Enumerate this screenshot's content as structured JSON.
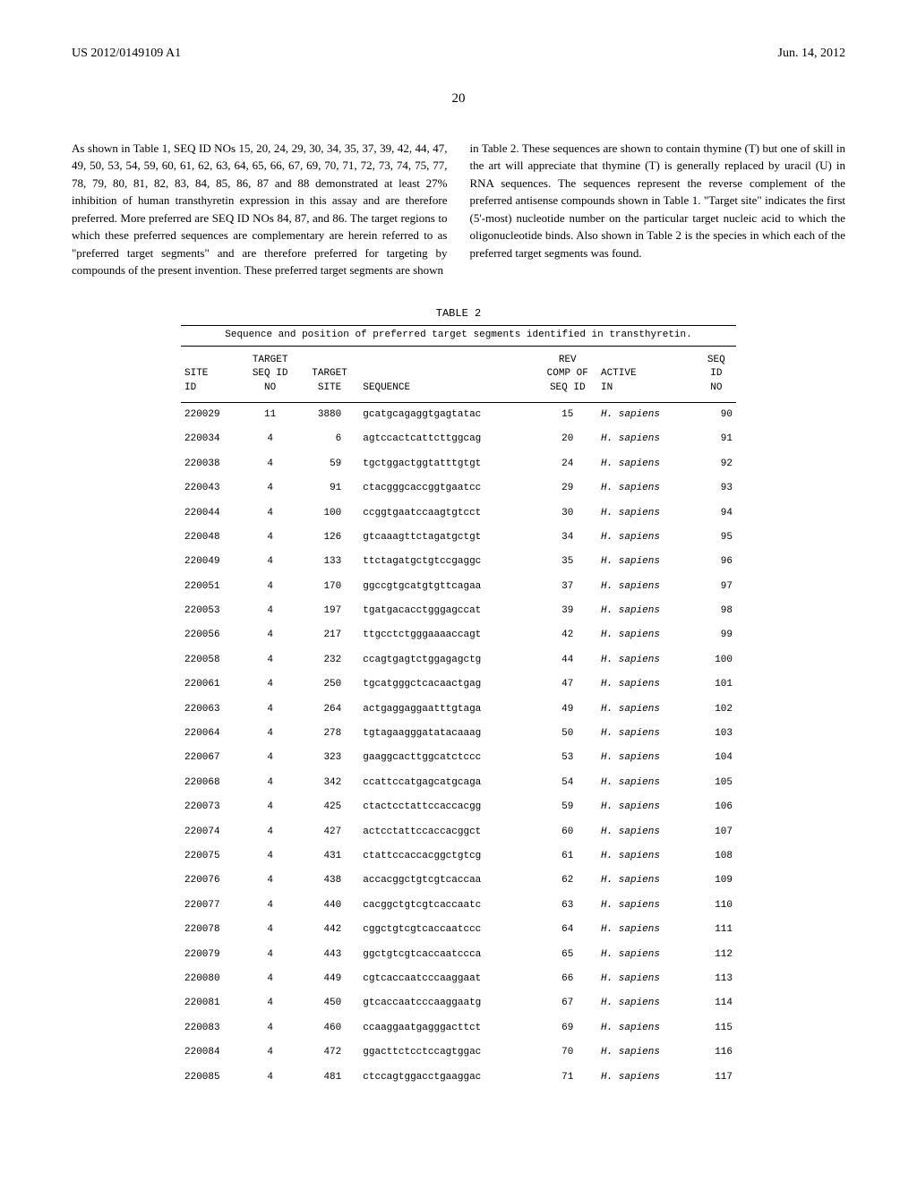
{
  "header": {
    "pub_number": "US 2012/0149109 A1",
    "pub_date": "Jun. 14, 2012"
  },
  "page_number": "20",
  "left_paragraph": "As shown in Table 1, SEQ ID NOs 15, 20, 24, 29, 30, 34, 35, 37, 39, 42, 44, 47, 49, 50, 53, 54, 59, 60, 61, 62, 63, 64, 65, 66, 67, 69, 70, 71, 72, 73, 74, 75, 77, 78, 79, 80, 81, 82, 83, 84, 85, 86, 87 and 88 demonstrated at least 27% inhibition of human transthyretin expression in this assay and are therefore preferred. More preferred are SEQ ID NOs 84, 87, and 86. The target regions to which these preferred sequences are complementary are herein referred to as \"preferred target segments\" and are therefore preferred for targeting by compounds of the present invention. These preferred target segments are shown",
  "right_paragraph": "in Table 2. These sequences are shown to contain thymine (T) but one of skill in the art will appreciate that thymine (T) is generally replaced by uracil (U) in RNA sequences. The sequences represent the reverse complement of the preferred antisense compounds shown in Table 1. \"Target site\" indicates the first (5'-most) nucleotide number on the particular target nucleic acid to which the oligonucleotide binds. Also shown in Table 2 is the species in which each of the preferred target segments was found.",
  "table": {
    "label": "TABLE 2",
    "title": "Sequence and position of preferred target segments identified in transthyretin.",
    "columns": {
      "site_id": "SITE\nID",
      "target_seq_id_no": "TARGET\nSEQ ID\nNO",
      "target_site": "TARGET\nSITE",
      "sequence": "SEQUENCE",
      "rev_comp": "REV\nCOMP OF\nSEQ ID",
      "active_in": "ACTIVE\nIN",
      "seq_id_no": "SEQ\nID\nNO"
    },
    "rows": [
      {
        "site_id": "220029",
        "tseq": "11",
        "tsite": "3880",
        "seq": "gcatgcagaggtgagtatac",
        "rev": "15",
        "active": "H. sapiens",
        "sid": "90"
      },
      {
        "site_id": "220034",
        "tseq": "4",
        "tsite": "6",
        "seq": "agtccactcattcttggcag",
        "rev": "20",
        "active": "H. sapiens",
        "sid": "91"
      },
      {
        "site_id": "220038",
        "tseq": "4",
        "tsite": "59",
        "seq": "tgctggactggtatttgtgt",
        "rev": "24",
        "active": "H. sapiens",
        "sid": "92"
      },
      {
        "site_id": "220043",
        "tseq": "4",
        "tsite": "91",
        "seq": "ctacgggcaccggtgaatcc",
        "rev": "29",
        "active": "H. sapiens",
        "sid": "93"
      },
      {
        "site_id": "220044",
        "tseq": "4",
        "tsite": "100",
        "seq": "ccggtgaatccaagtgtcct",
        "rev": "30",
        "active": "H. sapiens",
        "sid": "94"
      },
      {
        "site_id": "220048",
        "tseq": "4",
        "tsite": "126",
        "seq": "gtcaaagttctagatgctgt",
        "rev": "34",
        "active": "H. sapiens",
        "sid": "95"
      },
      {
        "site_id": "220049",
        "tseq": "4",
        "tsite": "133",
        "seq": "ttctagatgctgtccgaggc",
        "rev": "35",
        "active": "H. sapiens",
        "sid": "96"
      },
      {
        "site_id": "220051",
        "tseq": "4",
        "tsite": "170",
        "seq": "ggccgtgcatgtgttcagaa",
        "rev": "37",
        "active": "H. sapiens",
        "sid": "97"
      },
      {
        "site_id": "220053",
        "tseq": "4",
        "tsite": "197",
        "seq": "tgatgacacctgggagccat",
        "rev": "39",
        "active": "H. sapiens",
        "sid": "98"
      },
      {
        "site_id": "220056",
        "tseq": "4",
        "tsite": "217",
        "seq": "ttgcctctgggaaaaccagt",
        "rev": "42",
        "active": "H. sapiens",
        "sid": "99"
      },
      {
        "site_id": "220058",
        "tseq": "4",
        "tsite": "232",
        "seq": "ccagtgagtctggagagctg",
        "rev": "44",
        "active": "H. sapiens",
        "sid": "100"
      },
      {
        "site_id": "220061",
        "tseq": "4",
        "tsite": "250",
        "seq": "tgcatgggctcacaactgag",
        "rev": "47",
        "active": "H. sapiens",
        "sid": "101"
      },
      {
        "site_id": "220063",
        "tseq": "4",
        "tsite": "264",
        "seq": "actgaggaggaatttgtaga",
        "rev": "49",
        "active": "H. sapiens",
        "sid": "102"
      },
      {
        "site_id": "220064",
        "tseq": "4",
        "tsite": "278",
        "seq": "tgtagaagggatatacaaag",
        "rev": "50",
        "active": "H. sapiens",
        "sid": "103"
      },
      {
        "site_id": "220067",
        "tseq": "4",
        "tsite": "323",
        "seq": "gaaggcacttggcatctccc",
        "rev": "53",
        "active": "H. sapiens",
        "sid": "104"
      },
      {
        "site_id": "220068",
        "tseq": "4",
        "tsite": "342",
        "seq": "ccattccatgagcatgcaga",
        "rev": "54",
        "active": "H. sapiens",
        "sid": "105"
      },
      {
        "site_id": "220073",
        "tseq": "4",
        "tsite": "425",
        "seq": "ctactcctattccaccacgg",
        "rev": "59",
        "active": "H. sapiens",
        "sid": "106"
      },
      {
        "site_id": "220074",
        "tseq": "4",
        "tsite": "427",
        "seq": "actcctattccaccacggct",
        "rev": "60",
        "active": "H. sapiens",
        "sid": "107"
      },
      {
        "site_id": "220075",
        "tseq": "4",
        "tsite": "431",
        "seq": "ctattccaccacggctgtcg",
        "rev": "61",
        "active": "H. sapiens",
        "sid": "108"
      },
      {
        "site_id": "220076",
        "tseq": "4",
        "tsite": "438",
        "seq": "accacggctgtcgtcaccaa",
        "rev": "62",
        "active": "H. sapiens",
        "sid": "109"
      },
      {
        "site_id": "220077",
        "tseq": "4",
        "tsite": "440",
        "seq": "cacggctgtcgtcaccaatc",
        "rev": "63",
        "active": "H. sapiens",
        "sid": "110"
      },
      {
        "site_id": "220078",
        "tseq": "4",
        "tsite": "442",
        "seq": "cggctgtcgtcaccaatccc",
        "rev": "64",
        "active": "H. sapiens",
        "sid": "111"
      },
      {
        "site_id": "220079",
        "tseq": "4",
        "tsite": "443",
        "seq": "ggctgtcgtcaccaatccca",
        "rev": "65",
        "active": "H. sapiens",
        "sid": "112"
      },
      {
        "site_id": "220080",
        "tseq": "4",
        "tsite": "449",
        "seq": "cgtcaccaatcccaaggaat",
        "rev": "66",
        "active": "H. sapiens",
        "sid": "113"
      },
      {
        "site_id": "220081",
        "tseq": "4",
        "tsite": "450",
        "seq": "gtcaccaatcccaaggaatg",
        "rev": "67",
        "active": "H. sapiens",
        "sid": "114"
      },
      {
        "site_id": "220083",
        "tseq": "4",
        "tsite": "460",
        "seq": "ccaaggaatgagggacttct",
        "rev": "69",
        "active": "H. sapiens",
        "sid": "115"
      },
      {
        "site_id": "220084",
        "tseq": "4",
        "tsite": "472",
        "seq": "ggacttctcctccagtggac",
        "rev": "70",
        "active": "H. sapiens",
        "sid": "116"
      },
      {
        "site_id": "220085",
        "tseq": "4",
        "tsite": "481",
        "seq": "ctccagtggacctgaaggac",
        "rev": "71",
        "active": "H. sapiens",
        "sid": "117"
      }
    ]
  }
}
